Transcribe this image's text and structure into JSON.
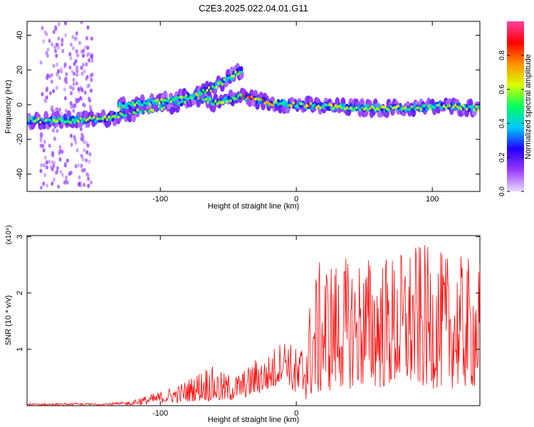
{
  "title": "C2E3.2025.022.04.01.G11",
  "chart_data": [
    {
      "type": "heatmap",
      "xlabel": "Height of straight line (km)",
      "ylabel": "Frequency (Hz)",
      "xlim": [
        -198,
        135
      ],
      "ylim": [
        -50,
        48
      ],
      "xticks": [
        -100,
        0,
        100
      ],
      "yticks": [
        -40,
        -20,
        0,
        20,
        40
      ],
      "colorbar": {
        "label": "Normalized spectral amplitude",
        "ticks": [
          0.0,
          0.2,
          0.4,
          0.6,
          0.8
        ],
        "range": [
          0,
          1
        ],
        "colors": [
          "#e6dcff",
          "#9a3cff",
          "#2200ff",
          "#00c8ff",
          "#00ff60",
          "#d8ff00",
          "#ff9000",
          "#ff0000",
          "#ff40a0"
        ]
      },
      "ridges": [
        {
          "name": "main",
          "points": [
            [
              -198,
              -9
            ],
            [
              -160,
              -9
            ],
            [
              -140,
              -8
            ],
            [
              -130,
              -6
            ],
            [
              -110,
              -3
            ],
            [
              -90,
              0
            ],
            [
              -80,
              3
            ],
            [
              -70,
              4
            ],
            [
              -60,
              1
            ],
            [
              -50,
              3
            ],
            [
              -40,
              5
            ],
            [
              -30,
              3
            ],
            [
              -20,
              1
            ],
            [
              0,
              0
            ],
            [
              20,
              -1
            ],
            [
              50,
              -2
            ],
            [
              80,
              -2
            ],
            [
              110,
              -1
            ],
            [
              135,
              -2
            ]
          ]
        },
        {
          "name": "upper",
          "points": [
            [
              -130,
              -1
            ],
            [
              -110,
              1
            ],
            [
              -90,
              3
            ],
            [
              -75,
              5
            ],
            [
              -60,
              10
            ],
            [
              -50,
              15
            ],
            [
              -40,
              20
            ]
          ]
        }
      ],
      "scatter_region": {
        "x_range": [
          -188,
          -150
        ],
        "y_range": [
          -48,
          48
        ]
      }
    },
    {
      "type": "line",
      "xlabel": "Height of straight line (km)",
      "ylabel": "SNR (10 * v/v)",
      "y_multiplier": "(x10⁴)",
      "xlim": [
        -198,
        135
      ],
      "ylim": [
        0,
        3.02
      ],
      "xticks": [
        -100,
        0
      ],
      "yticks": [
        1,
        2,
        3
      ],
      "color": "#ff0000",
      "envelope": {
        "x": [
          -198,
          -150,
          -130,
          -110,
          -95,
          -85,
          -75,
          -65,
          -55,
          -45,
          -35,
          -28,
          -22,
          -15,
          -8,
          -3,
          2,
          8,
          14,
          20,
          30,
          50,
          70,
          90,
          110,
          135
        ],
        "upper": [
          0.07,
          0.08,
          0.1,
          0.18,
          0.3,
          0.4,
          0.55,
          0.75,
          0.6,
          0.55,
          0.7,
          0.9,
          0.85,
          1.1,
          1.2,
          1.1,
          1.0,
          1.6,
          2.4,
          2.7,
          2.6,
          2.7,
          2.7,
          2.9,
          2.7,
          2.6
        ],
        "lower": [
          0.0,
          0.0,
          0.0,
          0.02,
          0.05,
          0.05,
          0.08,
          0.08,
          0.05,
          0.1,
          0.15,
          0.2,
          0.25,
          0.3,
          0.6,
          0.2,
          0.05,
          0.1,
          0.15,
          0.2,
          0.3,
          0.3,
          0.3,
          0.3,
          0.3,
          0.3
        ]
      }
    }
  ]
}
